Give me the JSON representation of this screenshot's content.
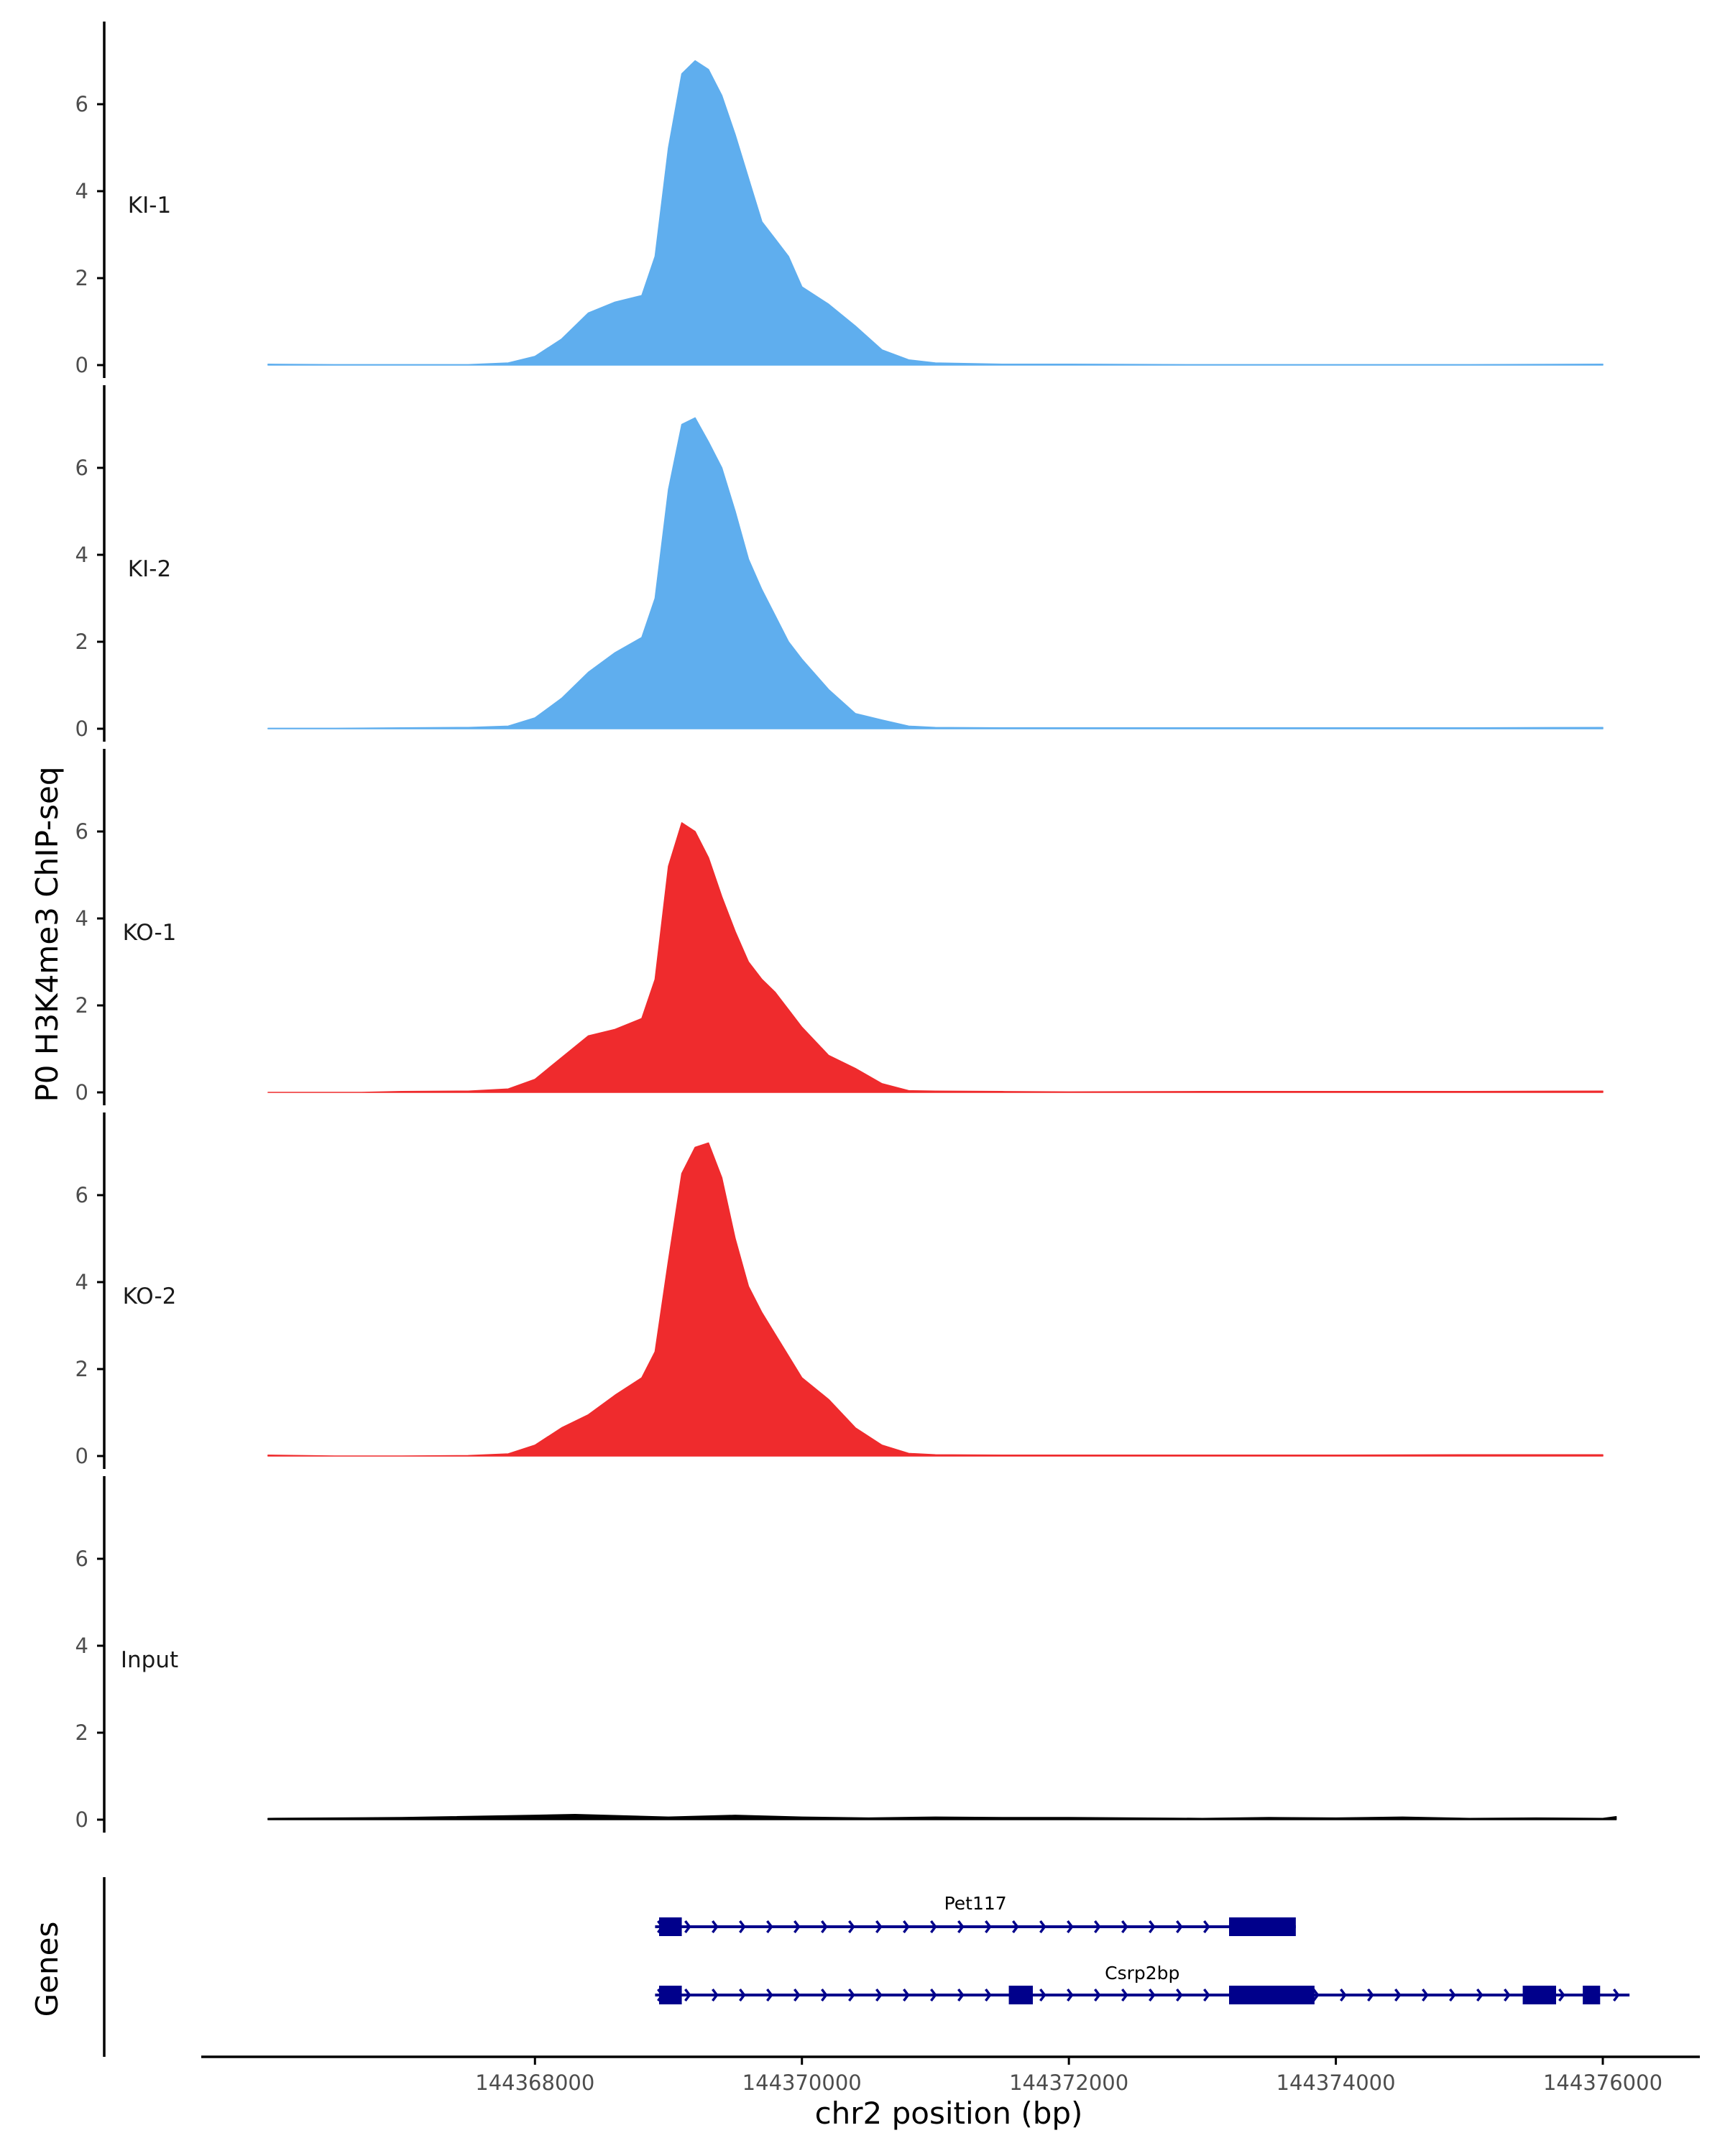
{
  "colors": {
    "ki": "#5faeee",
    "ko": "#ef2b2d",
    "input": "#000000",
    "gene": "#00008b",
    "axis": "#000000"
  },
  "chart_data": {
    "type": "area",
    "ylabel": "P0 H3K4me3 ChIP-seq",
    "xlabel": "chr2 position (bp)",
    "xlim": [
      144365500,
      144376700
    ],
    "ylim": [
      0,
      7.6
    ],
    "x_ticks": [
      144368000,
      144370000,
      144372000,
      144374000,
      144376000
    ],
    "x_tick_labels": [
      "144368000",
      "144370000",
      "144372000",
      "144374000",
      "144376000"
    ],
    "y_ticks": [
      0,
      2,
      4,
      6
    ],
    "y_tick_labels": [
      "0",
      "2",
      "4",
      "6"
    ],
    "tracks": [
      {
        "label": "KI-1",
        "color": "#5faeee",
        "x": [
          144366000,
          144366500,
          144367000,
          144367500,
          144367800,
          144368000,
          144368200,
          144368400,
          144368600,
          144368800,
          144368900,
          144369000,
          144369100,
          144369200,
          144369300,
          144369400,
          144369500,
          144369600,
          144369700,
          144369800,
          144369900,
          144370000,
          144370200,
          144370400,
          144370600,
          144370800,
          144371000,
          144371500,
          144372000,
          144373000,
          144374000,
          144375000,
          144376000
        ],
        "y": [
          0.02,
          0.01,
          0.01,
          0.01,
          0.05,
          0.2,
          0.6,
          1.2,
          1.45,
          1.6,
          2.5,
          5.0,
          6.7,
          7.0,
          6.8,
          6.2,
          5.3,
          4.3,
          3.3,
          2.9,
          2.5,
          1.8,
          1.4,
          0.9,
          0.35,
          0.12,
          0.05,
          0.02,
          0.02,
          0.01,
          0.01,
          0.01,
          0.02
        ]
      },
      {
        "label": "KI-2",
        "color": "#5faeee",
        "x": [
          144366000,
          144366500,
          144367000,
          144367500,
          144367800,
          144368000,
          144368200,
          144368400,
          144368600,
          144368800,
          144368900,
          144369000,
          144369100,
          144369200,
          144369300,
          144369400,
          144369500,
          144369600,
          144369700,
          144369800,
          144369900,
          144370000,
          144370200,
          144370400,
          144370600,
          144370800,
          144371000,
          144371500,
          144372000,
          144373000,
          144374000,
          144375000,
          144376000
        ],
        "y": [
          0.01,
          0.01,
          0.02,
          0.03,
          0.06,
          0.25,
          0.7,
          1.3,
          1.75,
          2.1,
          3.0,
          5.5,
          7.0,
          7.15,
          6.6,
          6.0,
          5.0,
          3.9,
          3.2,
          2.6,
          2.0,
          1.6,
          0.9,
          0.35,
          0.2,
          0.06,
          0.03,
          0.02,
          0.02,
          0.02,
          0.02,
          0.02,
          0.03
        ]
      },
      {
        "label": "KO-1",
        "color": "#ef2b2d",
        "x": [
          144366000,
          144366700,
          144367000,
          144367500,
          144367800,
          144368000,
          144368200,
          144368400,
          144368600,
          144368800,
          144368900,
          144369000,
          144369100,
          144369200,
          144369300,
          144369400,
          144369500,
          144369600,
          144369700,
          144369800,
          144369900,
          144370000,
          144370200,
          144370400,
          144370600,
          144370800,
          144371000,
          144371500,
          144372000,
          144373000,
          144374000,
          144375000,
          144376000
        ],
        "y": [
          0.0,
          0.0,
          0.02,
          0.03,
          0.08,
          0.3,
          0.8,
          1.3,
          1.45,
          1.7,
          2.6,
          5.2,
          6.2,
          6.0,
          5.4,
          4.5,
          3.7,
          3.0,
          2.6,
          2.3,
          1.9,
          1.5,
          0.85,
          0.55,
          0.2,
          0.04,
          0.03,
          0.02,
          0.01,
          0.02,
          0.02,
          0.02,
          0.03
        ]
      },
      {
        "label": "KO-2",
        "color": "#ef2b2d",
        "x": [
          144366000,
          144366500,
          144367000,
          144367500,
          144367800,
          144368000,
          144368200,
          144368400,
          144368600,
          144368800,
          144368900,
          144369000,
          144369100,
          144369200,
          144369300,
          144369400,
          144369500,
          144369600,
          144369700,
          144369800,
          144369900,
          144370000,
          144370200,
          144370400,
          144370600,
          144370800,
          144371000,
          144371500,
          144372000,
          144373000,
          144374000,
          144375000,
          144376000
        ],
        "y": [
          0.02,
          0.0,
          0.0,
          0.01,
          0.05,
          0.25,
          0.65,
          0.95,
          1.4,
          1.8,
          2.4,
          4.5,
          6.5,
          7.1,
          7.2,
          6.4,
          5.0,
          3.9,
          3.3,
          2.8,
          2.3,
          1.8,
          1.3,
          0.65,
          0.25,
          0.06,
          0.03,
          0.02,
          0.02,
          0.02,
          0.02,
          0.03,
          0.03
        ]
      },
      {
        "label": "Input",
        "color": "#000000",
        "x": [
          144366000,
          144367000,
          144368000,
          144368300,
          144369000,
          144369500,
          144370000,
          144370500,
          144371000,
          144371500,
          144372000,
          144372500,
          144373000,
          144373500,
          144374000,
          144374500,
          144375000,
          144375500,
          144376000,
          144376100
        ],
        "y": [
          0.03,
          0.05,
          0.1,
          0.12,
          0.06,
          0.1,
          0.06,
          0.04,
          0.06,
          0.05,
          0.05,
          0.04,
          0.03,
          0.05,
          0.04,
          0.06,
          0.03,
          0.04,
          0.03,
          0.07
        ]
      }
    ],
    "genes_label": "Genes",
    "genes": [
      {
        "name": "Pet117",
        "start": 144368900,
        "end": 144373700,
        "strand": "+",
        "exons": [
          [
            144368930,
            144369100
          ],
          [
            144373200,
            144373700
          ]
        ]
      },
      {
        "name": "Csrp2bp",
        "start": 144368900,
        "end": 144376200,
        "strand": "+",
        "exons": [
          [
            144368930,
            144369100
          ],
          [
            144371550,
            144371730
          ],
          [
            144373200,
            144373840
          ],
          [
            144375400,
            144375650
          ],
          [
            144375850,
            144375980
          ]
        ]
      }
    ]
  }
}
